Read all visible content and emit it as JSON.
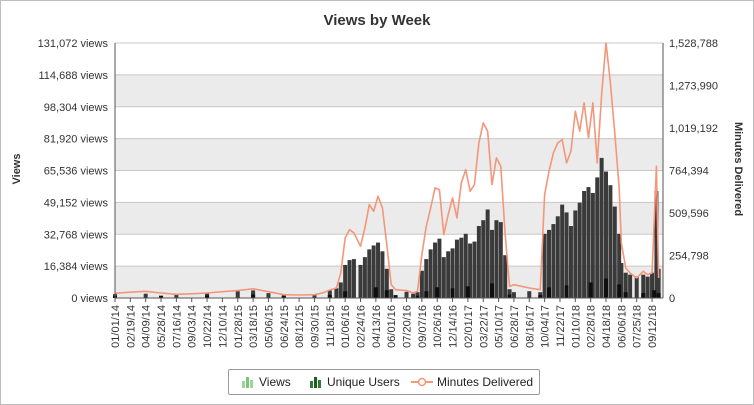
{
  "chart_data": {
    "type": "bar",
    "title": "Views by Week",
    "ylabel": "Views",
    "y2label": "Minutes Delivered",
    "ylim": [
      0,
      131072
    ],
    "y2lim": [
      0,
      1528788
    ],
    "y_ticks": [
      "0 views",
      "16,384 views",
      "32,768 views",
      "49,152 views",
      "65,536 views",
      "81,920 views",
      "98,304 views",
      "114,688 views",
      "131,072 views"
    ],
    "y2_ticks": [
      "0",
      "254,798",
      "509,596",
      "764,394",
      "1,019,192",
      "1,273,990",
      "1,528,788"
    ],
    "x_tick_labels": [
      "01/01/14",
      "02/19/14",
      "04/09/14",
      "05/28/14",
      "07/16/14",
      "09/03/14",
      "10/22/14",
      "12/10/14",
      "01/28/15",
      "03/18/15",
      "05/06/15",
      "06/24/15",
      "08/12/15",
      "09/30/15",
      "11/18/15",
      "01/06/16",
      "02/24/16",
      "04/13/16",
      "06/01/16",
      "07/20/16",
      "09/07/16",
      "10/26/16",
      "12/14/16",
      "02/01/17",
      "03/22/17",
      "05/10/17",
      "06/28/17",
      "08/16/17",
      "10/04/17",
      "11/22/17",
      "01/10/18",
      "02/28/18",
      "04/18/18",
      "06/06/18",
      "07/25/18",
      "09/12/18"
    ],
    "grid": true,
    "legend_position": "bottom",
    "colors": {
      "views": "#7cc47c",
      "unique_users": "#2e2e2e",
      "minutes_delivered": "#f4967a"
    },
    "series": [
      {
        "name": "Views",
        "type": "bar",
        "axis": "left",
        "points": [
          [
            "01/01/14",
            2000
          ],
          [
            "04/09/14",
            2200
          ],
          [
            "07/16/14",
            1700
          ],
          [
            "10/22/14",
            2500
          ],
          [
            "01/28/15",
            3500
          ],
          [
            "03/18/15",
            3900
          ],
          [
            "05/06/15",
            2500
          ],
          [
            "06/24/15",
            1600
          ],
          [
            "09/30/15",
            2000
          ],
          [
            "11/18/15",
            3900
          ],
          [
            "12/09/15",
            5000
          ],
          [
            "12/23/15",
            8000
          ],
          [
            "01/06/16",
            17000
          ],
          [
            "01/20/16",
            19500
          ],
          [
            "02/03/16",
            20000
          ],
          [
            "02/24/16",
            17000
          ],
          [
            "03/09/16",
            21000
          ],
          [
            "03/23/16",
            25000
          ],
          [
            "04/06/16",
            27000
          ],
          [
            "04/20/16",
            28500
          ],
          [
            "05/04/16",
            24000
          ],
          [
            "05/18/16",
            15000
          ],
          [
            "06/01/16",
            4500
          ],
          [
            "07/20/16",
            3200
          ],
          [
            "08/10/16",
            2200
          ],
          [
            "08/24/16",
            3000
          ],
          [
            "09/07/16",
            14000
          ],
          [
            "09/21/16",
            20000
          ],
          [
            "10/05/16",
            25000
          ],
          [
            "10/19/16",
            28500
          ],
          [
            "11/02/16",
            30500
          ],
          [
            "11/16/16",
            21000
          ],
          [
            "11/30/16",
            24000
          ],
          [
            "12/14/16",
            25500
          ],
          [
            "12/28/16",
            30000
          ],
          [
            "01/11/17",
            31000
          ],
          [
            "01/25/17",
            33000
          ],
          [
            "02/08/17",
            28000
          ],
          [
            "02/22/17",
            29000
          ],
          [
            "03/08/17",
            37000
          ],
          [
            "03/22/17",
            40000
          ],
          [
            "04/05/17",
            45500
          ],
          [
            "04/19/17",
            35000
          ],
          [
            "05/03/17",
            40000
          ],
          [
            "05/17/17",
            39000
          ],
          [
            "05/31/17",
            22000
          ],
          [
            "06/14/17",
            4500
          ],
          [
            "06/28/17",
            3000
          ],
          [
            "08/16/17",
            3500
          ],
          [
            "09/20/17",
            3000
          ],
          [
            "10/04/17",
            33000
          ],
          [
            "10/18/17",
            35000
          ],
          [
            "11/01/17",
            38000
          ],
          [
            "11/15/17",
            42000
          ],
          [
            "11/29/17",
            48000
          ],
          [
            "12/13/17",
            44000
          ],
          [
            "12/27/17",
            37000
          ],
          [
            "01/10/18",
            45000
          ],
          [
            "01/24/18",
            49000
          ],
          [
            "02/07/18",
            55000
          ],
          [
            "02/21/18",
            57000
          ],
          [
            "03/07/18",
            54000
          ],
          [
            "03/21/18",
            62000
          ],
          [
            "04/04/18",
            72000
          ],
          [
            "04/18/18",
            65000
          ],
          [
            "05/02/18",
            58000
          ],
          [
            "05/16/18",
            47000
          ],
          [
            "05/30/18",
            33000
          ],
          [
            "06/06/18",
            18000
          ],
          [
            "06/20/18",
            13000
          ],
          [
            "07/04/18",
            12000
          ],
          [
            "07/25/18",
            11000
          ],
          [
            "08/15/18",
            12000
          ],
          [
            "08/29/18",
            11000
          ],
          [
            "09/12/18",
            13000
          ],
          [
            "09/26/18",
            55000
          ],
          [
            "10/03/18",
            15000
          ]
        ]
      },
      {
        "name": "Unique Users",
        "type": "bar",
        "axis": "left",
        "points": [
          [
            "01/01/14",
            1000
          ],
          [
            "05/28/14",
            1200
          ],
          [
            "10/22/14",
            1300
          ],
          [
            "03/18/15",
            1800
          ],
          [
            "06/24/15",
            1000
          ],
          [
            "11/18/15",
            1600
          ],
          [
            "01/06/16",
            3500
          ],
          [
            "04/13/16",
            5500
          ],
          [
            "05/18/16",
            4000
          ],
          [
            "06/15/16",
            1500
          ],
          [
            "08/24/16",
            1200
          ],
          [
            "09/21/16",
            3500
          ],
          [
            "10/26/16",
            5500
          ],
          [
            "12/14/16",
            5000
          ],
          [
            "02/01/17",
            6000
          ],
          [
            "04/19/17",
            7500
          ],
          [
            "06/14/17",
            1700
          ],
          [
            "09/20/17",
            1500
          ],
          [
            "10/18/17",
            5500
          ],
          [
            "12/13/17",
            6500
          ],
          [
            "02/28/18",
            8000
          ],
          [
            "04/18/18",
            10000
          ],
          [
            "05/30/18",
            7000
          ],
          [
            "06/20/18",
            3000
          ],
          [
            "08/15/18",
            2500
          ],
          [
            "09/19/18",
            4000
          ],
          [
            "10/03/18",
            2500
          ]
        ]
      },
      {
        "name": "Minutes Delivered",
        "type": "line",
        "axis": "right",
        "points": [
          [
            "01/01/14",
            28000
          ],
          [
            "02/19/14",
            35000
          ],
          [
            "04/09/14",
            40000
          ],
          [
            "05/28/14",
            30000
          ],
          [
            "07/16/14",
            22000
          ],
          [
            "09/03/14",
            25000
          ],
          [
            "10/22/14",
            30000
          ],
          [
            "12/10/14",
            38000
          ],
          [
            "01/28/15",
            45000
          ],
          [
            "03/18/15",
            55000
          ],
          [
            "05/06/15",
            38000
          ],
          [
            "06/24/15",
            20000
          ],
          [
            "08/12/15",
            18000
          ],
          [
            "09/30/15",
            20000
          ],
          [
            "10/28/15",
            32000
          ],
          [
            "11/18/15",
            48000
          ],
          [
            "12/09/15",
            60000
          ],
          [
            "12/23/15",
            150000
          ],
          [
            "01/06/16",
            360000
          ],
          [
            "01/20/16",
            410000
          ],
          [
            "02/03/16",
            390000
          ],
          [
            "02/24/16",
            310000
          ],
          [
            "03/09/16",
            420000
          ],
          [
            "03/23/16",
            560000
          ],
          [
            "04/06/16",
            520000
          ],
          [
            "04/20/16",
            610000
          ],
          [
            "05/04/16",
            540000
          ],
          [
            "05/18/16",
            320000
          ],
          [
            "06/01/16",
            80000
          ],
          [
            "06/15/16",
            50000
          ],
          [
            "07/20/16",
            45000
          ],
          [
            "08/10/16",
            30000
          ],
          [
            "08/24/16",
            40000
          ],
          [
            "09/07/16",
            260000
          ],
          [
            "09/21/16",
            430000
          ],
          [
            "10/05/16",
            540000
          ],
          [
            "10/19/16",
            660000
          ],
          [
            "11/02/16",
            650000
          ],
          [
            "11/16/16",
            380000
          ],
          [
            "11/30/16",
            500000
          ],
          [
            "12/14/16",
            600000
          ],
          [
            "12/28/16",
            480000
          ],
          [
            "01/11/17",
            690000
          ],
          [
            "01/25/17",
            770000
          ],
          [
            "02/08/17",
            640000
          ],
          [
            "02/22/17",
            680000
          ],
          [
            "03/08/17",
            930000
          ],
          [
            "03/22/17",
            1050000
          ],
          [
            "04/05/17",
            1000000
          ],
          [
            "04/19/17",
            680000
          ],
          [
            "05/03/17",
            840000
          ],
          [
            "05/17/17",
            790000
          ],
          [
            "05/31/17",
            380000
          ],
          [
            "06/14/17",
            70000
          ],
          [
            "06/28/17",
            80000
          ],
          [
            "08/16/17",
            60000
          ],
          [
            "09/20/17",
            50000
          ],
          [
            "10/04/17",
            620000
          ],
          [
            "10/18/17",
            760000
          ],
          [
            "11/01/17",
            870000
          ],
          [
            "11/15/17",
            930000
          ],
          [
            "11/29/17",
            950000
          ],
          [
            "12/13/17",
            810000
          ],
          [
            "12/27/17",
            880000
          ],
          [
            "01/10/18",
            1120000
          ],
          [
            "01/24/18",
            1000000
          ],
          [
            "02/07/18",
            1170000
          ],
          [
            "02/21/18",
            960000
          ],
          [
            "03/07/18",
            1170000
          ],
          [
            "03/21/18",
            810000
          ],
          [
            "04/04/18",
            1220000
          ],
          [
            "04/18/18",
            1528788
          ],
          [
            "05/02/18",
            1290000
          ],
          [
            "05/16/18",
            990000
          ],
          [
            "05/30/18",
            660000
          ],
          [
            "06/06/18",
            330000
          ],
          [
            "06/20/18",
            180000
          ],
          [
            "07/04/18",
            150000
          ],
          [
            "07/25/18",
            120000
          ],
          [
            "08/15/18",
            160000
          ],
          [
            "08/29/18",
            140000
          ],
          [
            "09/12/18",
            150000
          ],
          [
            "09/26/18",
            790000
          ],
          [
            "10/03/18",
            120000
          ]
        ]
      }
    ]
  }
}
